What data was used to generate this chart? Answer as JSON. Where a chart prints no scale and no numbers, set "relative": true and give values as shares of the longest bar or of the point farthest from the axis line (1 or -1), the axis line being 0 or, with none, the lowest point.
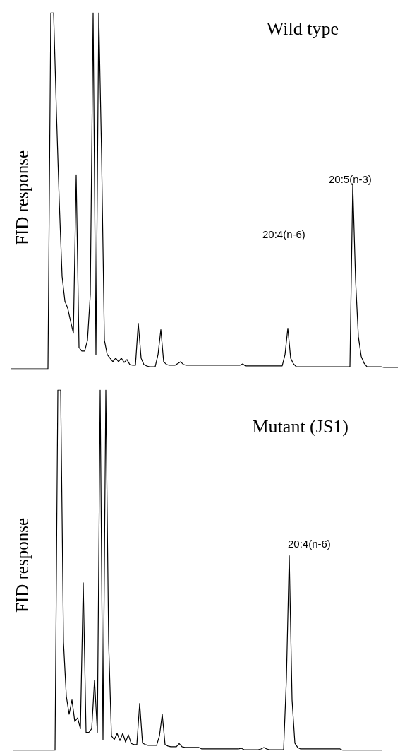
{
  "chart_data": [
    {
      "type": "line",
      "title": "Wild type",
      "ylabel": "FID response",
      "relative": true,
      "marker": "none",
      "annotations": [
        "20:5(n-3)",
        "20:4(n-6)"
      ],
      "categories": [
        null,
        null,
        null,
        null,
        null,
        null,
        null,
        null,
        null,
        null,
        null,
        null,
        null,
        null,
        null,
        null,
        null,
        null,
        null,
        null,
        null,
        null,
        null,
        null,
        null,
        null,
        null,
        null,
        null,
        null,
        null,
        null,
        null,
        null,
        null,
        null,
        null,
        null,
        null,
        null,
        null,
        null,
        null,
        null,
        null,
        null,
        null,
        null,
        null,
        null,
        null,
        null,
        null,
        null,
        null,
        null,
        null,
        null,
        null,
        null,
        null,
        null,
        null,
        null,
        null,
        null,
        null,
        null,
        null,
        null,
        null,
        null,
        null,
        null,
        null,
        null,
        null,
        null,
        null,
        null,
        null,
        null,
        null,
        null,
        null,
        null,
        null,
        null,
        null,
        null,
        null,
        null,
        null,
        null,
        null,
        null,
        null,
        null,
        null,
        null,
        null,
        null,
        null,
        null,
        null,
        null,
        null,
        null,
        null,
        null,
        null,
        null,
        null,
        null,
        null,
        null,
        null,
        null,
        null,
        null,
        null,
        null,
        null,
        null,
        null,
        null,
        null,
        null,
        null,
        null,
        null,
        null,
        null,
        null,
        null,
        null,
        null,
        null
      ],
      "series": [
        {
          "color": "#000000",
          "values": [
            0,
            0,
            0,
            0,
            0,
            0,
            0,
            0,
            0,
            0,
            0,
            0,
            0,
            0,
            1,
            1,
            0.72,
            0.47,
            0.26,
            0.19,
            0.17,
            0.134,
            0.1,
            0.545,
            0.06,
            0.05,
            0.05,
            0.08,
            0.209,
            1,
            0.04,
            1,
            0.6,
            0.08,
            0.04,
            0.03,
            0.02,
            0.03,
            0.02,
            0.03,
            0.018,
            0.026,
            0.012,
            0.01,
            0.01,
            0.128,
            0.03,
            0.012,
            0.008,
            0.006,
            0.006,
            0.006,
            0.04,
            0.11,
            0.02,
            0.012,
            0.01,
            0.01,
            0.01,
            0.015,
            0.02,
            0.012,
            0.01,
            0.01,
            0.01,
            0.01,
            0.01,
            0.01,
            0.01,
            0.01,
            0.01,
            0.01,
            0.01,
            0.01,
            0.01,
            0.01,
            0.01,
            0.01,
            0.01,
            0.01,
            0.01,
            0.01,
            0.014,
            0.008,
            0.008,
            0.008,
            0.008,
            0.008,
            0.008,
            0.008,
            0.008,
            0.008,
            0.008,
            0.008,
            0.008,
            0.008,
            0.008,
            0.04,
            0.114,
            0.03,
            0.014,
            0.006,
            0.006,
            0.006,
            0.006,
            0.006,
            0.006,
            0.006,
            0.006,
            0.006,
            0.006,
            0.006,
            0.006,
            0.006,
            0.006,
            0.006,
            0.006,
            0.006,
            0.006,
            0.006,
            0.006,
            0.52,
            0.25,
            0.09,
            0.035,
            0.016,
            0.006,
            0.006,
            0.006,
            0.006,
            0.006,
            0.006,
            0.004,
            0.004,
            0.004,
            0.004,
            0.004,
            0.004
          ]
        }
      ]
    },
    {
      "type": "line",
      "title": "Mutant (JS1)",
      "ylabel": "FID response",
      "relative": true,
      "marker": "none",
      "annotations": [
        "20:4(n-6)"
      ],
      "categories": [
        null,
        null,
        null,
        null,
        null,
        null,
        null,
        null,
        null,
        null,
        null,
        null,
        null,
        null,
        null,
        null,
        null,
        null,
        null,
        null,
        null,
        null,
        null,
        null,
        null,
        null,
        null,
        null,
        null,
        null,
        null,
        null,
        null,
        null,
        null,
        null,
        null,
        null,
        null,
        null,
        null,
        null,
        null,
        null,
        null,
        null,
        null,
        null,
        null,
        null,
        null,
        null,
        null,
        null,
        null,
        null,
        null,
        null,
        null,
        null,
        null,
        null,
        null,
        null,
        null,
        null,
        null,
        null,
        null,
        null,
        null,
        null,
        null,
        null,
        null,
        null,
        null,
        null,
        null,
        null,
        null,
        null,
        null,
        null,
        null,
        null,
        null,
        null,
        null,
        null,
        null,
        null,
        null,
        null,
        null,
        null,
        null,
        null,
        null,
        null,
        null,
        null,
        null,
        null,
        null,
        null,
        null,
        null,
        null,
        null,
        null,
        null,
        null,
        null,
        null,
        null,
        null,
        null,
        null,
        null,
        null,
        null,
        null,
        null,
        null,
        null,
        null,
        null,
        null,
        null,
        null,
        null
      ],
      "series": [
        {
          "color": "#000000",
          "values": [
            0,
            0,
            0,
            0,
            0,
            0,
            0,
            0,
            0,
            0,
            0,
            0,
            0,
            0,
            0,
            0,
            1,
            1,
            0.3,
            0.15,
            0.1,
            0.14,
            0.08,
            0.09,
            0.06,
            0.465,
            0.05,
            0.05,
            0.06,
            0.195,
            0.05,
            1,
            0.03,
            1,
            0.3,
            0.04,
            0.03,
            0.047,
            0.027,
            0.047,
            0.023,
            0.043,
            0.019,
            0.016,
            0.016,
            0.13,
            0.02,
            0.016,
            0.014,
            0.014,
            0.014,
            0.014,
            0.04,
            0.1,
            0.016,
            0.012,
            0.01,
            0.01,
            0.01,
            0.019,
            0.01,
            0.008,
            0.008,
            0.008,
            0.008,
            0.008,
            0.008,
            0.004,
            0.004,
            0.004,
            0.004,
            0.004,
            0.004,
            0.004,
            0.004,
            0.004,
            0.004,
            0.004,
            0.004,
            0.004,
            0.004,
            0.006,
            0.002,
            0.002,
            0.002,
            0.002,
            0.002,
            0.002,
            0.004,
            0.008,
            0.004,
            0.002,
            0.002,
            0.002,
            0.002,
            0.002,
            0.002,
            0.2,
            0.54,
            0.14,
            0.02,
            0.008,
            0.004,
            0.004,
            0.004,
            0.004,
            0.004,
            0.004,
            0.004,
            0.004,
            0.004,
            0.004,
            0.004,
            0.004,
            0.004,
            0.004,
            0.004,
            0,
            0,
            0,
            0,
            0,
            0,
            0,
            0,
            0,
            0,
            0,
            0,
            0,
            0,
            0
          ]
        }
      ]
    }
  ]
}
